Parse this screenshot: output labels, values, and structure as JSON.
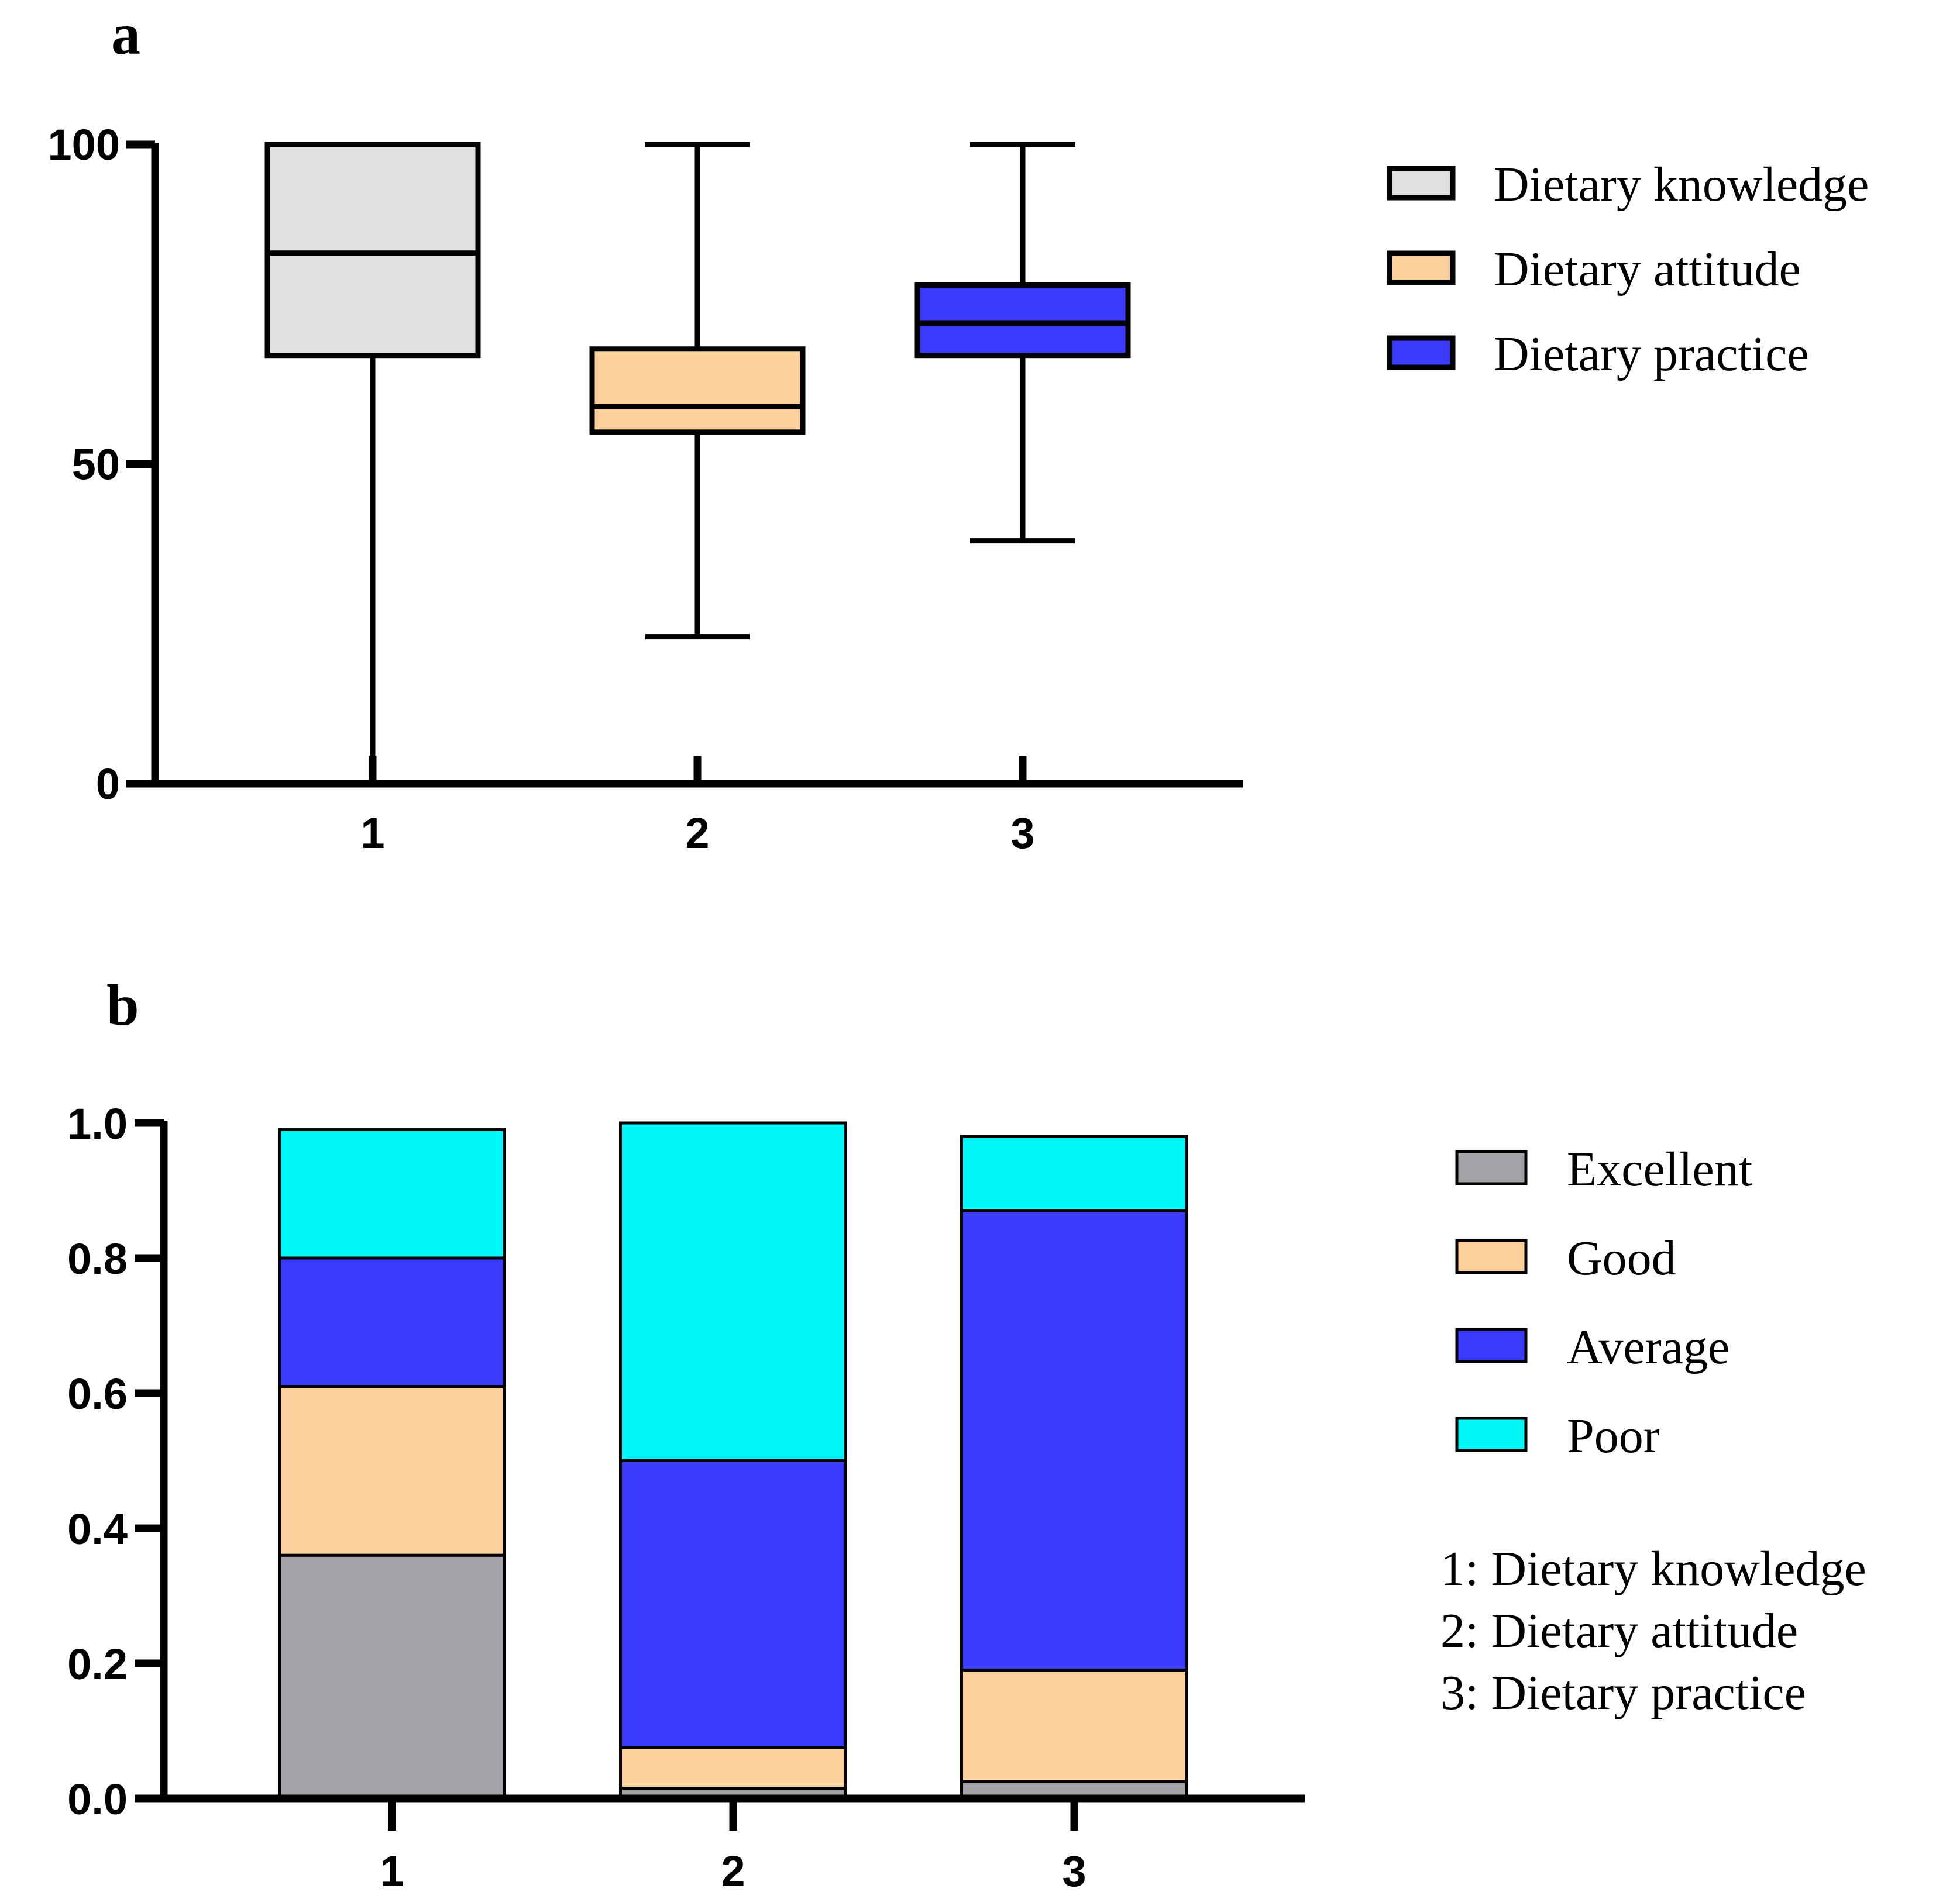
{
  "chart_data": [
    {
      "panel": "a",
      "type": "box",
      "categories": [
        "1",
        "2",
        "3"
      ],
      "ylim": [
        0,
        100
      ],
      "yticks": [
        "0",
        "50",
        "100"
      ],
      "series": [
        {
          "name": "Dietary knowledge",
          "color": "#e0e0e0",
          "min": 0,
          "q1": 67,
          "median": 83,
          "q3": 100,
          "max": 100
        },
        {
          "name": "Dietary attitude",
          "color": "#fdd09e",
          "min": 23,
          "q1": 55,
          "median": 59,
          "q3": 68,
          "max": 100
        },
        {
          "name": "Dietary practice",
          "color": "#3a3afa",
          "min": 38,
          "q1": 67,
          "median": 72,
          "q3": 78,
          "max": 100
        }
      ],
      "legend": [
        "Dietary knowledge",
        "Dietary attitude",
        "Dietary practice"
      ]
    },
    {
      "panel": "b",
      "type": "stacked_bar",
      "categories": [
        "1",
        "2",
        "3"
      ],
      "ylim": [
        0,
        1.0
      ],
      "yticks": [
        "0.0",
        "0.2",
        "0.4",
        "0.6",
        "0.8",
        "1.0"
      ],
      "series": [
        {
          "name": "Excellent",
          "color": "#a4a3a8",
          "values": [
            0.36,
            0.015,
            0.025
          ]
        },
        {
          "name": "Good",
          "color": "#fdd09e",
          "values": [
            0.25,
            0.06,
            0.165
          ]
        },
        {
          "name": "Average",
          "color": "#3a3afa",
          "values": [
            0.19,
            0.425,
            0.68
          ]
        },
        {
          "name": "Poor",
          "color": "#00f8f8",
          "values": [
            0.19,
            0.5,
            0.11
          ]
        }
      ],
      "legend": [
        "Excellent",
        "Good",
        "Average",
        "Poor"
      ],
      "category_key": [
        "1: Dietary knowledge",
        "2: Dietary attitude",
        "3: Dietary practice"
      ]
    }
  ]
}
